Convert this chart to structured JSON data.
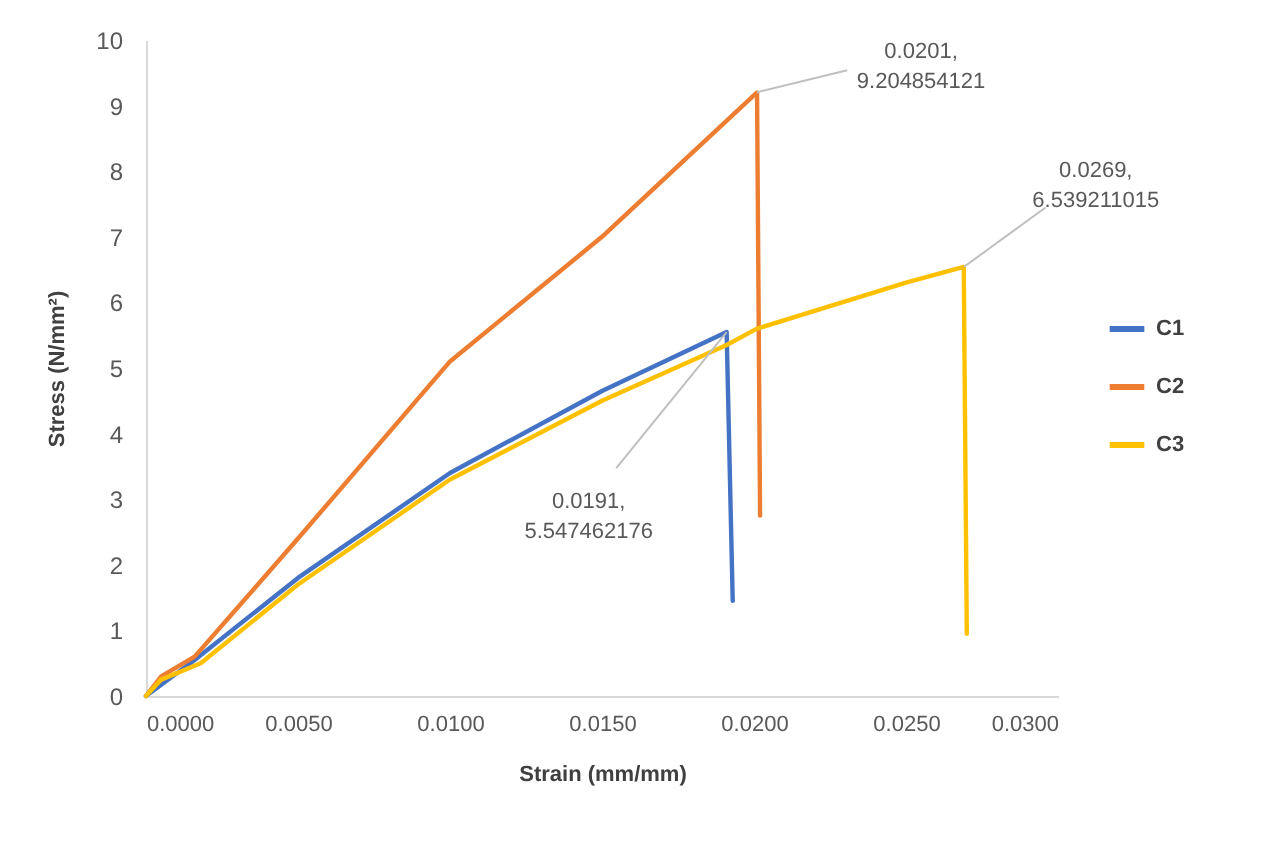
{
  "chart_data": {
    "type": "line",
    "xlabel": "Strain  (mm/mm)",
    "ylabel": "Stress (N/mm²)",
    "xlim": [
      0,
      0.03
    ],
    "ylim": [
      0,
      10
    ],
    "xticks": [
      {
        "value": 0,
        "label": "0.0000"
      },
      {
        "value": 0.005,
        "label": "0.0050"
      },
      {
        "value": 0.01,
        "label": "0.0100"
      },
      {
        "value": 0.015,
        "label": "0.0150"
      },
      {
        "value": 0.02,
        "label": "0.0200"
      },
      {
        "value": 0.025,
        "label": "0.0250"
      },
      {
        "value": 0.03,
        "label": "0.0300"
      }
    ],
    "yticks": [
      0,
      1,
      2,
      3,
      4,
      5,
      6,
      7,
      8,
      9,
      10
    ],
    "grid": false,
    "legend": "right",
    "marker": "none",
    "line_style": "solid",
    "series": [
      {
        "name": "C1",
        "color": "#4472c4",
        "x": [
          0,
          0.0016,
          0.005,
          0.01,
          0.015,
          0.0191,
          0.0193
        ],
        "values": [
          0,
          0.55,
          1.8,
          3.4,
          4.65,
          5.55,
          1.45
        ]
      },
      {
        "name": "C2",
        "color": "#ed7d31",
        "x": [
          0,
          0.0005,
          0.0016,
          0.005,
          0.01,
          0.015,
          0.0201,
          0.0202
        ],
        "values": [
          0,
          0.3,
          0.6,
          2.4,
          5.1,
          7.0,
          9.2,
          2.75
        ]
      },
      {
        "name": "C3",
        "color": "#ffc000",
        "x": [
          0,
          0.0005,
          0.0018,
          0.005,
          0.01,
          0.015,
          0.0191,
          0.0201,
          0.025,
          0.0269,
          0.027
        ],
        "values": [
          0,
          0.25,
          0.5,
          1.7,
          3.3,
          4.5,
          5.35,
          5.6,
          6.3,
          6.54,
          0.95
        ]
      }
    ],
    "annotations": [
      {
        "text": "0.0191, 5.547462176",
        "x": 0.0191,
        "y": 5.547462176
      },
      {
        "text": "0.0201, 9.204854121",
        "x": 0.0201,
        "y": 9.204854121
      },
      {
        "text": "0.0269, 6.539211015",
        "x": 0.0269,
        "y": 6.539211015
      }
    ]
  }
}
